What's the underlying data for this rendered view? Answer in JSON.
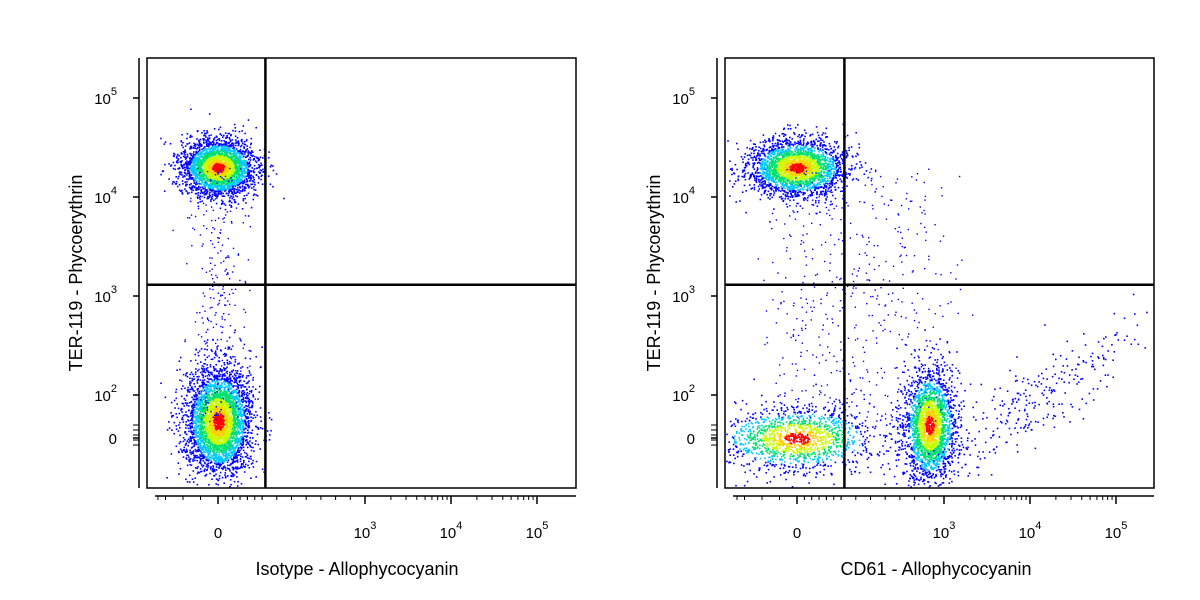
{
  "chart_data": [
    {
      "type": "scatter",
      "xlabel": "Isotype - Allophycocyanin",
      "ylabel": "TER-119 - Phycoerythrin",
      "x_scale": "biexponential",
      "y_scale": "biexponential",
      "x_ticks": [
        {
          "value": 0,
          "base": "0",
          "exp": ""
        },
        {
          "value": 1000,
          "base": "10",
          "exp": "3"
        },
        {
          "value": 10000,
          "base": "10",
          "exp": "4"
        },
        {
          "value": 100000,
          "base": "10",
          "exp": "5"
        }
      ],
      "y_ticks": [
        {
          "value": 0,
          "base": "0",
          "exp": ""
        },
        {
          "value": 100,
          "base": "10",
          "exp": "2"
        },
        {
          "value": 1000,
          "base": "10",
          "exp": "3"
        },
        {
          "value": 10000,
          "base": "10",
          "exp": "4"
        },
        {
          "value": 100000,
          "base": "10",
          "exp": "5"
        }
      ],
      "quadrant_gate": {
        "x": 200,
        "y": 1300
      },
      "density_colormap": [
        "#0000ff",
        "#00c8ff",
        "#00e070",
        "#c8ff00",
        "#ffd000",
        "#ff0000"
      ],
      "populations": [
        {
          "x_center": 0,
          "y_center": 20000,
          "events": 3000
        },
        {
          "x_center": 0,
          "y_center": 40,
          "events": 3800
        }
      ]
    },
    {
      "type": "scatter",
      "xlabel": "CD61 - Allophycocyanin",
      "ylabel": "TER-119 - Phycoerythrin",
      "x_scale": "biexponential",
      "y_scale": "biexponential",
      "x_ticks": [
        {
          "value": 0,
          "base": "0",
          "exp": ""
        },
        {
          "value": 1000,
          "base": "10",
          "exp": "3"
        },
        {
          "value": 10000,
          "base": "10",
          "exp": "4"
        },
        {
          "value": 100000,
          "base": "10",
          "exp": "5"
        }
      ],
      "y_ticks": [
        {
          "value": 0,
          "base": "0",
          "exp": ""
        },
        {
          "value": 100,
          "base": "10",
          "exp": "2"
        },
        {
          "value": 1000,
          "base": "10",
          "exp": "3"
        },
        {
          "value": 10000,
          "base": "10",
          "exp": "4"
        },
        {
          "value": 100000,
          "base": "10",
          "exp": "5"
        }
      ],
      "quadrant_gate": {
        "x": 200,
        "y": 1300
      },
      "density_colormap": [
        "#0000ff",
        "#00c8ff",
        "#00e070",
        "#c8ff00",
        "#ffd000",
        "#ff0000"
      ],
      "populations": [
        {
          "x_center": 0,
          "y_center": 20000,
          "events": 2600
        },
        {
          "x_center": 0,
          "y_center": 0,
          "events": 1500
        },
        {
          "x_center": 900,
          "y_center": 30,
          "events": 2300
        },
        {
          "x_center": 10000,
          "y_center": 80,
          "events": 300
        }
      ]
    }
  ]
}
